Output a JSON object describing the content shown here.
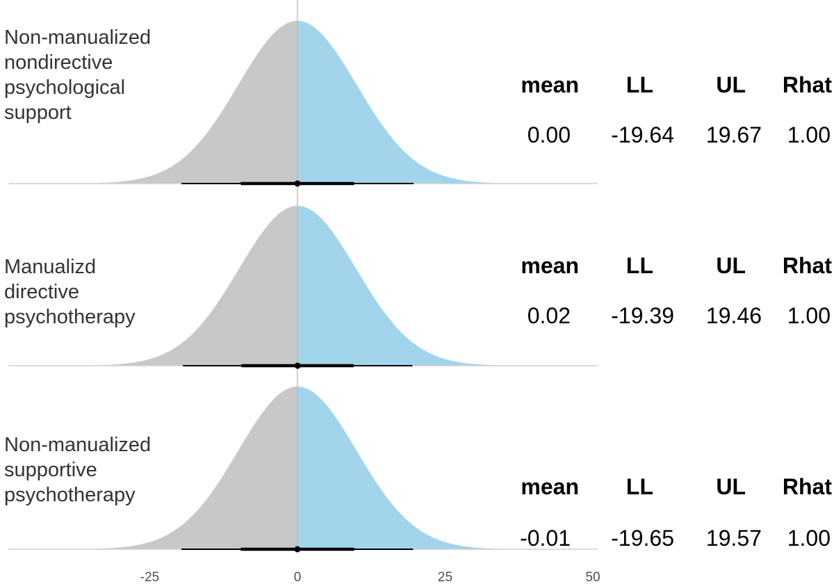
{
  "chart_data": {
    "type": "density",
    "x_ticks": [
      -25,
      0,
      25,
      50
    ],
    "xlim": [
      -50,
      50
    ],
    "vertical_reference": 0,
    "colors": {
      "left_fill": "#c8c8c8",
      "right_fill": "#a2d5eb",
      "baseline": "#cfcfcf",
      "interval": "#000000"
    },
    "header": {
      "mean": "mean",
      "ll": "LL",
      "ul": "UL",
      "rhat": "Rhat"
    },
    "series": [
      {
        "name": "Non-manualized nondirective psychological support",
        "label_lines": [
          "Non-manualized",
          "nondirective",
          "psychological",
          "support"
        ],
        "mean": 0.0,
        "ll": -19.64,
        "ul": 19.67,
        "rhat": 1.0,
        "mean_text": "0.00",
        "ll_text": "-19.64",
        "ul_text": "19.67",
        "rhat_text": "1.00",
        "inner": [
          -9.6,
          9.6
        ]
      },
      {
        "name": "Manualizd directive psychotherapy",
        "label_lines": [
          "Manualizd",
          "directive",
          "psychotherapy"
        ],
        "mean": 0.02,
        "ll": -19.39,
        "ul": 19.46,
        "rhat": 1.0,
        "mean_text": "0.02",
        "ll_text": "-19.39",
        "ul_text": "19.46",
        "rhat_text": "1.00",
        "inner": [
          -9.5,
          9.5
        ]
      },
      {
        "name": "Non-manualized supportive psychotherapy",
        "label_lines": [
          "Non-manualized",
          "supportive",
          "psychotherapy"
        ],
        "mean": -0.01,
        "ll": -19.65,
        "ul": 19.57,
        "rhat": 1.0,
        "mean_text": "-0.01",
        "ll_text": "-19.65",
        "ul_text": "19.57",
        "rhat_text": "1.00",
        "inner": [
          -9.6,
          9.6
        ]
      }
    ]
  }
}
